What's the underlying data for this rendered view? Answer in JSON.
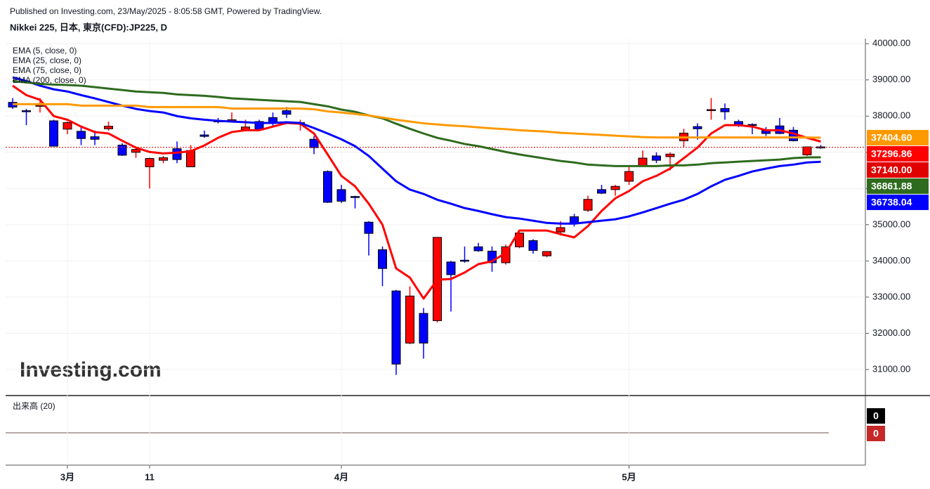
{
  "header": {
    "published": "Published on Investing.com, 23/May/2025 - 8:05:58 GMT, Powered by TradingView.",
    "instrument": "Nikkei 225, 日本, 東京(CFD):JP225, D"
  },
  "chart_data": {
    "type": "candlestick",
    "watermark": "Investing.com",
    "categories": [
      null,
      null,
      null,
      null,
      "3月",
      null,
      null,
      null,
      null,
      null,
      "11",
      null,
      null,
      null,
      null,
      null,
      null,
      null,
      null,
      null,
      null,
      null,
      null,
      null,
      "4月",
      null,
      null,
      null,
      null,
      null,
      null,
      null,
      null,
      null,
      null,
      null,
      null,
      null,
      null,
      null,
      null,
      null,
      null,
      null,
      null,
      "5月",
      null,
      null,
      null,
      null,
      null,
      null,
      null,
      null,
      null,
      null,
      null,
      null,
      null,
      null
    ],
    "candles": {
      "up_color": "#ff0000",
      "down_color": "#0000ff",
      "open": [
        38380,
        38150,
        38280,
        37870,
        37640,
        37580,
        37430,
        37650,
        37200,
        37000,
        36600,
        36780,
        37100,
        36600,
        37480,
        37870,
        37890,
        37630,
        37850,
        37960,
        38150,
        37800,
        37360,
        36470,
        35970,
        35780,
        35070,
        34310,
        33170,
        31730,
        32550,
        32350,
        33970,
        34020,
        34390,
        34270,
        33950,
        34390,
        34560,
        34140,
        34800,
        35220,
        35400,
        35970,
        35970,
        36200,
        36620,
        36900,
        36880,
        37320,
        37710,
        38170,
        38210,
        37850,
        37770,
        37600,
        37730,
        37610,
        36930,
        37150
      ],
      "high": [
        38500,
        38200,
        38500,
        37900,
        37850,
        37700,
        37600,
        37850,
        37250,
        37150,
        36850,
        36900,
        37300,
        37200,
        37600,
        37950,
        38100,
        37900,
        37900,
        38100,
        38250,
        37900,
        37450,
        36500,
        36100,
        35800,
        35100,
        34400,
        33200,
        33300,
        32700,
        34650,
        34000,
        34400,
        34500,
        34400,
        34450,
        34780,
        34600,
        34250,
        35100,
        35300,
        35800,
        36100,
        36100,
        36600,
        37050,
        37000,
        37000,
        37650,
        37800,
        38500,
        38350,
        37900,
        37800,
        37700,
        37950,
        37700,
        37150,
        37200
      ],
      "low": [
        38200,
        37750,
        38100,
        37200,
        37500,
        37200,
        37200,
        37600,
        36900,
        36850,
        36000,
        36700,
        36700,
        36600,
        37400,
        37800,
        37850,
        37600,
        37600,
        37700,
        37950,
        37600,
        36950,
        35600,
        35600,
        35450,
        34150,
        33300,
        30850,
        31700,
        31300,
        32300,
        32600,
        33950,
        34250,
        33700,
        33900,
        34350,
        34200,
        34100,
        34700,
        34950,
        35350,
        35850,
        35800,
        36100,
        36600,
        36700,
        36500,
        37150,
        37350,
        37900,
        37900,
        37700,
        37500,
        37450,
        37500,
        37300,
        36900,
        37100
      ],
      "close": [
        38250,
        38130,
        38300,
        37170,
        37820,
        37380,
        37360,
        37720,
        36920,
        37080,
        36830,
        36850,
        36800,
        37050,
        37440,
        37850,
        37900,
        37700,
        37620,
        37800,
        38050,
        37820,
        37130,
        35620,
        35650,
        35750,
        34760,
        33790,
        31150,
        33030,
        31730,
        34650,
        33620,
        34000,
        34280,
        33950,
        34390,
        34770,
        34290,
        34260,
        34920,
        35030,
        35700,
        35870,
        36060,
        36470,
        36840,
        36780,
        36950,
        37530,
        37650,
        38180,
        38120,
        37750,
        37750,
        37520,
        37520,
        37320,
        37150,
        37140
      ],
      "last_label": "37140.00",
      "last_color": "#e00000"
    },
    "series": [
      {
        "name": "EMA (5, close, 0)",
        "color": "#ff0000",
        "last_label": "37296.86",
        "values": [
          38840,
          38580,
          38450,
          38000,
          37900,
          37710,
          37560,
          37520,
          37320,
          37130,
          37010,
          36970,
          36990,
          37030,
          37190,
          37400,
          37560,
          37610,
          37610,
          37710,
          37810,
          37790,
          37520,
          36940,
          36350,
          36060,
          35580,
          35000,
          33790,
          33540,
          32960,
          33480,
          33500,
          33680,
          33910,
          33990,
          34220,
          34840,
          34840,
          34840,
          34740,
          34650,
          34960,
          35380,
          35730,
          35930,
          36200,
          36350,
          36550,
          36840,
          37130,
          37520,
          37750,
          37750,
          37710,
          37610,
          37610,
          37520,
          37400,
          37296.86
        ]
      },
      {
        "name": "EMA (25, close, 0)",
        "color": "#0000ff",
        "last_label": "36738.04",
        "values": [
          39070,
          38970,
          38840,
          38740,
          38680,
          38580,
          38490,
          38390,
          38290,
          38200,
          38140,
          38100,
          38000,
          37940,
          37900,
          37870,
          37850,
          37830,
          37810,
          37810,
          37830,
          37810,
          37670,
          37520,
          37360,
          37170,
          36900,
          36550,
          36200,
          35970,
          35850,
          35690,
          35580,
          35460,
          35380,
          35290,
          35210,
          35170,
          35110,
          35050,
          35030,
          35030,
          35070,
          35110,
          35150,
          35230,
          35340,
          35460,
          35580,
          35690,
          35850,
          36060,
          36240,
          36350,
          36470,
          36550,
          36620,
          36660,
          36720,
          36738.04
        ]
      },
      {
        "name": "EMA (75, close, 0)",
        "color": "#2e6b1e",
        "last_label": "36861.88",
        "values": [
          38970,
          38930,
          38890,
          38870,
          38860,
          38840,
          38800,
          38760,
          38720,
          38680,
          38660,
          38640,
          38600,
          38580,
          38560,
          38530,
          38490,
          38470,
          38450,
          38430,
          38410,
          38390,
          38330,
          38270,
          38180,
          38120,
          38020,
          37940,
          37790,
          37650,
          37520,
          37400,
          37320,
          37230,
          37170,
          37090,
          37010,
          36940,
          36880,
          36820,
          36760,
          36720,
          36660,
          36640,
          36620,
          36620,
          36620,
          36620,
          36640,
          36640,
          36660,
          36700,
          36720,
          36740,
          36760,
          36780,
          36800,
          36840,
          36860,
          36861.88
        ]
      },
      {
        "name": "EMA (200, close, 0)",
        "color": "#ff9900",
        "last_label": "37404.60",
        "values": [
          38330,
          38330,
          38330,
          38330,
          38330,
          38290,
          38290,
          38290,
          38290,
          38290,
          38250,
          38250,
          38250,
          38250,
          38250,
          38250,
          38210,
          38210,
          38210,
          38210,
          38210,
          38210,
          38190,
          38130,
          38100,
          38060,
          38020,
          37960,
          37900,
          37850,
          37800,
          37770,
          37740,
          37720,
          37690,
          37660,
          37640,
          37610,
          37590,
          37570,
          37540,
          37520,
          37500,
          37480,
          37460,
          37440,
          37420,
          37410,
          37410,
          37410,
          37410,
          37410,
          37410,
          37410,
          37410,
          37410,
          37410,
          37410,
          37410,
          37404.6
        ]
      }
    ],
    "ylim": [
      30300,
      40140
    ],
    "yticks": [
      {
        "value": 31000,
        "label": "31000.00"
      },
      {
        "value": 32000,
        "label": "32000.00"
      },
      {
        "value": 33000,
        "label": "33000.00"
      },
      {
        "value": 34000,
        "label": "34000.00"
      },
      {
        "value": 35000,
        "label": "35000.00"
      },
      {
        "value": 36000,
        "label": "36000.00"
      },
      {
        "value": 37000,
        "label": "37000.00"
      },
      {
        "value": 38000,
        "label": "38000.00"
      },
      {
        "value": 39000,
        "label": "39000.00"
      },
      {
        "value": 40000,
        "label": "40000.00"
      }
    ],
    "grid": true,
    "volume": {
      "title": "出来高 (20)",
      "badges": [
        {
          "value": 0,
          "color": "#000000"
        },
        {
          "value": 0,
          "color": "#c62828"
        }
      ]
    }
  }
}
